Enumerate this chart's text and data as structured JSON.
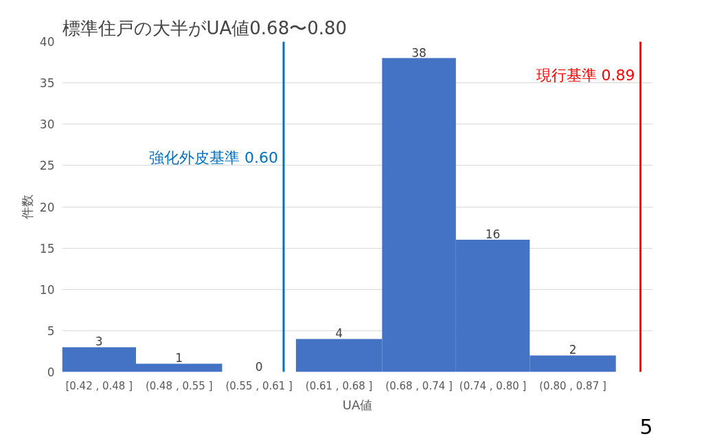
{
  "chart_data": {
    "type": "histogram",
    "title": "標準住戸の大半がUA値0.68〜0.80",
    "xlabel": "UA値",
    "ylabel": "件数",
    "bins": [
      0.42,
      0.48,
      0.55,
      0.61,
      0.68,
      0.74,
      0.8,
      0.87
    ],
    "values": [
      3,
      1,
      0,
      4,
      38,
      16,
      2
    ],
    "color": "#4472c4",
    "data_labels": true,
    "xlim": [
      0.42,
      0.9
    ],
    "categories": [
      "[0.42 , 0.48 ]",
      "(0.48 , 0.55 ]",
      "(0.55 , 0.61 ]",
      "(0.61 , 0.68 ]",
      "(0.68 , 0.74 ]",
      "(0.74 , 0.80 ]",
      "(0.80 , 0.87 ]"
    ],
    "ylim": [
      0,
      40
    ],
    "yticks": [
      0,
      5,
      10,
      15,
      20,
      25,
      30,
      35,
      40
    ],
    "grid": "y",
    "ref_lines": [
      {
        "axis": "x",
        "value": 0.6,
        "label": "強化外皮基準 0.60",
        "color": "#0070c0"
      },
      {
        "axis": "x",
        "value": 0.89,
        "label": "現行基準 0.89",
        "color": "#ff0000"
      }
    ],
    "annotations": [
      "5"
    ]
  }
}
